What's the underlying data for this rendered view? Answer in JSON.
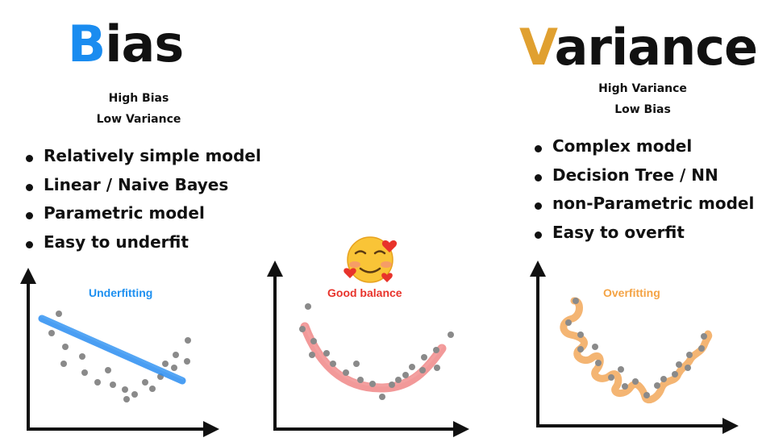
{
  "left": {
    "title_initial": "B",
    "title_rest": "ias",
    "subtitle_line1": "High Bias",
    "subtitle_line2": "Low Variance",
    "bullets": [
      "Relatively simple model",
      "Linear / Naive Bayes",
      "Parametric model",
      "Easy to underfit"
    ]
  },
  "right": {
    "title_initial": "V",
    "title_rest": "ariance",
    "subtitle_line1": "High Variance",
    "subtitle_line2": "Low Bias",
    "bullets": [
      "Complex model",
      "Decision Tree / NN",
      "non-Parametric model",
      "Easy to overfit"
    ]
  },
  "plots": {
    "underfitting": {
      "label": "Underfitting",
      "color": "#1e90f0"
    },
    "good_balance": {
      "label": "Good balance",
      "color": "#e8332b",
      "emoji_icon": "smiling-face-with-hearts-icon"
    },
    "overfitting": {
      "label": "Overfitting",
      "color": "#f4a344"
    }
  },
  "colors": {
    "bias_accent": "#1a8cf0",
    "variance_accent": "#e0a030",
    "points": "#8a8a8a",
    "axes": "#111111",
    "underfit_line": "#2b8ef2",
    "balance_curve": "#ef7f7f",
    "overfit_curve": "#f2a85a"
  }
}
